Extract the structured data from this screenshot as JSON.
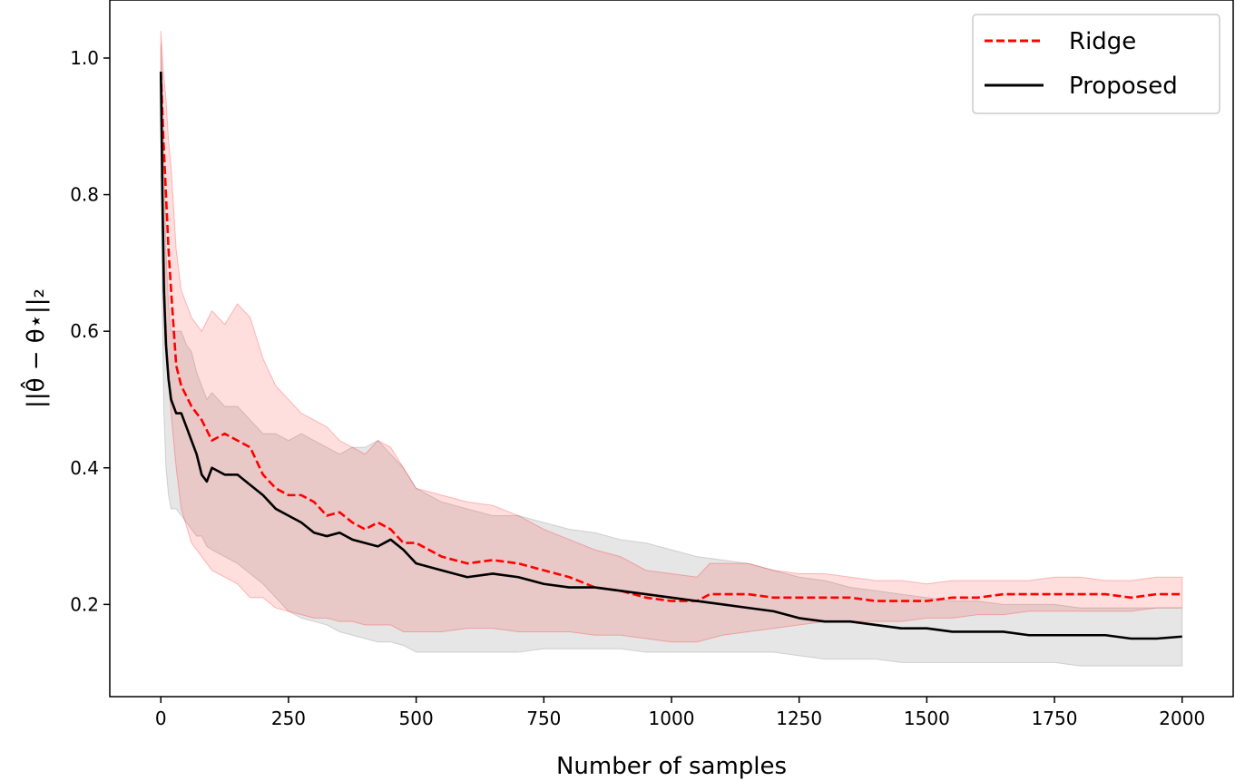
{
  "chart_data": {
    "type": "line",
    "title": "",
    "xlabel": "Number of samples",
    "ylabel": "||θ̂ − θ⋆||₂",
    "xlim": [
      -100,
      2100
    ],
    "ylim": [
      0.065,
      1.085
    ],
    "xticks": [
      0,
      250,
      500,
      750,
      1000,
      1250,
      1500,
      1750,
      2000
    ],
    "yticks": [
      0.2,
      0.4,
      0.6,
      0.8,
      1.0
    ],
    "xtick_labels": [
      "0",
      "250",
      "500",
      "750",
      "1000",
      "1250",
      "1500",
      "1750",
      "2000"
    ],
    "ytick_labels": [
      "0.2",
      "0.4",
      "0.6",
      "0.8",
      "1.0"
    ],
    "grid": false,
    "legend_position": "top-right",
    "series": [
      {
        "name": "Ridge",
        "color": "#ff0000",
        "band_color": "#ff0000",
        "style": "dashed",
        "x": [
          0,
          5,
          10,
          15,
          20,
          30,
          40,
          60,
          80,
          100,
          125,
          150,
          175,
          200,
          225,
          250,
          275,
          300,
          325,
          350,
          375,
          400,
          425,
          450,
          475,
          500,
          550,
          600,
          650,
          700,
          750,
          800,
          850,
          900,
          950,
          1000,
          1050,
          1075,
          1100,
          1150,
          1200,
          1250,
          1300,
          1350,
          1400,
          1450,
          1500,
          1550,
          1600,
          1650,
          1700,
          1750,
          1800,
          1850,
          1900,
          1950,
          2000
        ],
        "y": [
          0.98,
          0.88,
          0.8,
          0.72,
          0.66,
          0.55,
          0.52,
          0.49,
          0.47,
          0.44,
          0.45,
          0.44,
          0.43,
          0.39,
          0.37,
          0.36,
          0.36,
          0.35,
          0.33,
          0.335,
          0.32,
          0.31,
          0.32,
          0.31,
          0.29,
          0.29,
          0.27,
          0.26,
          0.265,
          0.26,
          0.25,
          0.24,
          0.225,
          0.22,
          0.21,
          0.205,
          0.205,
          0.215,
          0.215,
          0.215,
          0.21,
          0.21,
          0.21,
          0.21,
          0.205,
          0.205,
          0.205,
          0.21,
          0.21,
          0.215,
          0.215,
          0.215,
          0.215,
          0.215,
          0.21,
          0.215,
          0.215
        ],
        "lower": [
          0.92,
          0.75,
          0.62,
          0.53,
          0.48,
          0.4,
          0.34,
          0.29,
          0.27,
          0.25,
          0.24,
          0.23,
          0.21,
          0.21,
          0.195,
          0.19,
          0.185,
          0.18,
          0.18,
          0.175,
          0.175,
          0.17,
          0.17,
          0.17,
          0.16,
          0.16,
          0.16,
          0.165,
          0.165,
          0.16,
          0.16,
          0.16,
          0.155,
          0.155,
          0.15,
          0.145,
          0.145,
          0.15,
          0.155,
          0.16,
          0.165,
          0.17,
          0.175,
          0.175,
          0.175,
          0.175,
          0.18,
          0.18,
          0.185,
          0.185,
          0.19,
          0.19,
          0.19,
          0.19,
          0.19,
          0.195,
          0.195
        ],
        "upper": [
          1.04,
          0.98,
          0.94,
          0.88,
          0.84,
          0.72,
          0.66,
          0.62,
          0.6,
          0.63,
          0.61,
          0.64,
          0.62,
          0.56,
          0.52,
          0.5,
          0.48,
          0.47,
          0.46,
          0.44,
          0.43,
          0.42,
          0.44,
          0.43,
          0.4,
          0.37,
          0.36,
          0.35,
          0.345,
          0.33,
          0.31,
          0.295,
          0.28,
          0.27,
          0.25,
          0.245,
          0.24,
          0.26,
          0.26,
          0.26,
          0.25,
          0.245,
          0.245,
          0.24,
          0.235,
          0.235,
          0.23,
          0.235,
          0.235,
          0.235,
          0.235,
          0.24,
          0.24,
          0.235,
          0.235,
          0.24,
          0.24
        ]
      },
      {
        "name": "Proposed",
        "color": "#000000",
        "band_color": "#808080",
        "style": "solid",
        "x": [
          0,
          3,
          6,
          10,
          15,
          20,
          30,
          40,
          50,
          60,
          70,
          80,
          90,
          100,
          125,
          150,
          175,
          200,
          225,
          250,
          275,
          300,
          325,
          350,
          375,
          400,
          425,
          450,
          475,
          500,
          550,
          600,
          650,
          700,
          750,
          800,
          850,
          900,
          950,
          1000,
          1050,
          1100,
          1150,
          1200,
          1250,
          1300,
          1350,
          1400,
          1450,
          1500,
          1550,
          1600,
          1650,
          1700,
          1750,
          1800,
          1850,
          1900,
          1950,
          2000
        ],
        "y": [
          0.98,
          0.8,
          0.66,
          0.58,
          0.53,
          0.5,
          0.48,
          0.48,
          0.46,
          0.44,
          0.42,
          0.39,
          0.38,
          0.4,
          0.39,
          0.39,
          0.375,
          0.36,
          0.34,
          0.33,
          0.32,
          0.305,
          0.3,
          0.305,
          0.295,
          0.29,
          0.285,
          0.295,
          0.28,
          0.26,
          0.25,
          0.24,
          0.245,
          0.24,
          0.23,
          0.225,
          0.225,
          0.22,
          0.215,
          0.21,
          0.205,
          0.2,
          0.195,
          0.19,
          0.18,
          0.175,
          0.175,
          0.17,
          0.165,
          0.165,
          0.16,
          0.16,
          0.16,
          0.155,
          0.155,
          0.155,
          0.155,
          0.15,
          0.15,
          0.153
        ],
        "lower": [
          0.92,
          0.62,
          0.48,
          0.4,
          0.36,
          0.34,
          0.34,
          0.33,
          0.32,
          0.31,
          0.3,
          0.3,
          0.285,
          0.28,
          0.27,
          0.26,
          0.245,
          0.23,
          0.21,
          0.19,
          0.18,
          0.175,
          0.17,
          0.16,
          0.155,
          0.15,
          0.145,
          0.145,
          0.14,
          0.13,
          0.13,
          0.13,
          0.13,
          0.13,
          0.135,
          0.135,
          0.135,
          0.135,
          0.13,
          0.13,
          0.13,
          0.13,
          0.13,
          0.13,
          0.125,
          0.12,
          0.12,
          0.12,
          0.115,
          0.115,
          0.115,
          0.115,
          0.115,
          0.115,
          0.115,
          0.11,
          0.11,
          0.11,
          0.11,
          0.11
        ],
        "upper": [
          1.02,
          0.96,
          0.86,
          0.72,
          0.64,
          0.6,
          0.6,
          0.6,
          0.58,
          0.57,
          0.54,
          0.52,
          0.5,
          0.51,
          0.49,
          0.49,
          0.47,
          0.45,
          0.45,
          0.44,
          0.45,
          0.44,
          0.43,
          0.42,
          0.43,
          0.43,
          0.44,
          0.42,
          0.4,
          0.37,
          0.35,
          0.34,
          0.33,
          0.33,
          0.32,
          0.31,
          0.305,
          0.295,
          0.29,
          0.28,
          0.27,
          0.265,
          0.26,
          0.25,
          0.24,
          0.235,
          0.225,
          0.22,
          0.215,
          0.21,
          0.205,
          0.205,
          0.2,
          0.2,
          0.2,
          0.195,
          0.195,
          0.195,
          0.195,
          0.195
        ]
      }
    ]
  }
}
